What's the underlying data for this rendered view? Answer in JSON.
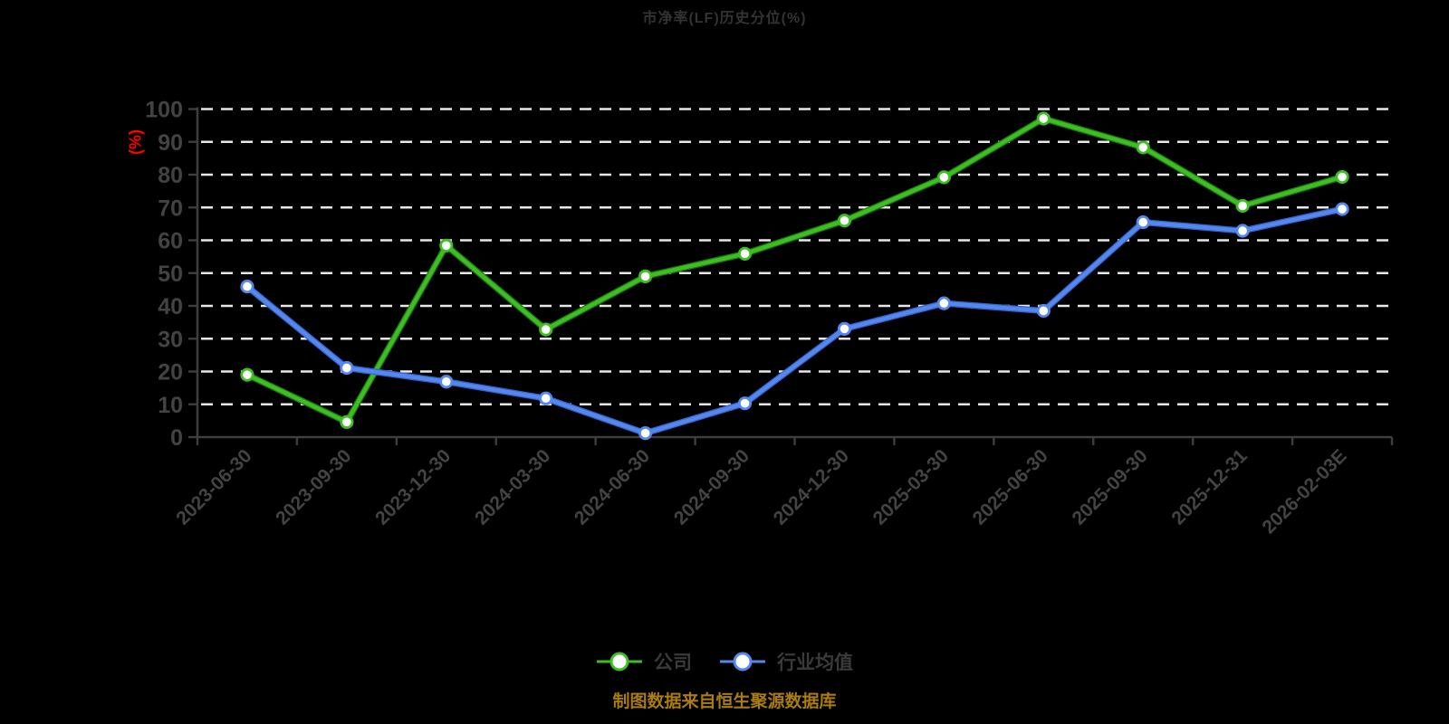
{
  "title": "市净率(LF)历史分位(%)",
  "y_axis": {
    "unit_label": "(%)",
    "ticks": [
      0,
      10,
      20,
      30,
      40,
      50,
      60,
      70,
      80,
      90,
      100
    ]
  },
  "legend": [
    {
      "label": "公司",
      "color": "#3dbe23"
    },
    {
      "label": "行业均值",
      "color": "#5588ef"
    }
  ],
  "footer": "制图数据来自恒生聚源数据库",
  "colors": {
    "background": "#000000",
    "title_text": "#333333",
    "axis_line": "#3e3e3e",
    "tick_label": "#434343",
    "gridline": "#e8e8e8",
    "unit_label_red": "#ff0000",
    "company_green": "#3dbe23",
    "company_green_dark": "#1f7d10",
    "industry_blue": "#5588ef",
    "industry_blue_dark": "#3465cd",
    "footer_gold": "#aa7b10",
    "marker_fill": "#ffffff"
  },
  "chart_data": {
    "type": "line",
    "title": "市净率(LF)历史分位(%)",
    "ylabel": "(%)",
    "ylim": [
      0,
      100
    ],
    "y_tick_step": 10,
    "grid": "horizontal dashed white lines",
    "legend_position": "bottom",
    "categories": [
      "2023-06-30",
      "2023-09-30",
      "2023-12-30",
      "2024-03-30",
      "2024-06-30",
      "2024-09-30",
      "2024-12-30",
      "2025-03-30",
      "2025-06-30",
      "2025-09-30",
      "2025-12-31",
      "2026-02-03E"
    ],
    "series": [
      {
        "name": "公司",
        "color": "#3dbe23",
        "values": [
          19,
          4.6,
          58.4,
          32.8,
          49,
          55.9,
          66,
          79.2,
          97.1,
          88.3,
          70.5,
          79.3
        ]
      },
      {
        "name": "行业均值",
        "color": "#5588ef",
        "values": [
          45.9,
          21.1,
          16.9,
          11.8,
          1.2,
          10.3,
          33,
          40.8,
          38.5,
          65.5,
          62.9,
          69.5
        ]
      }
    ]
  }
}
